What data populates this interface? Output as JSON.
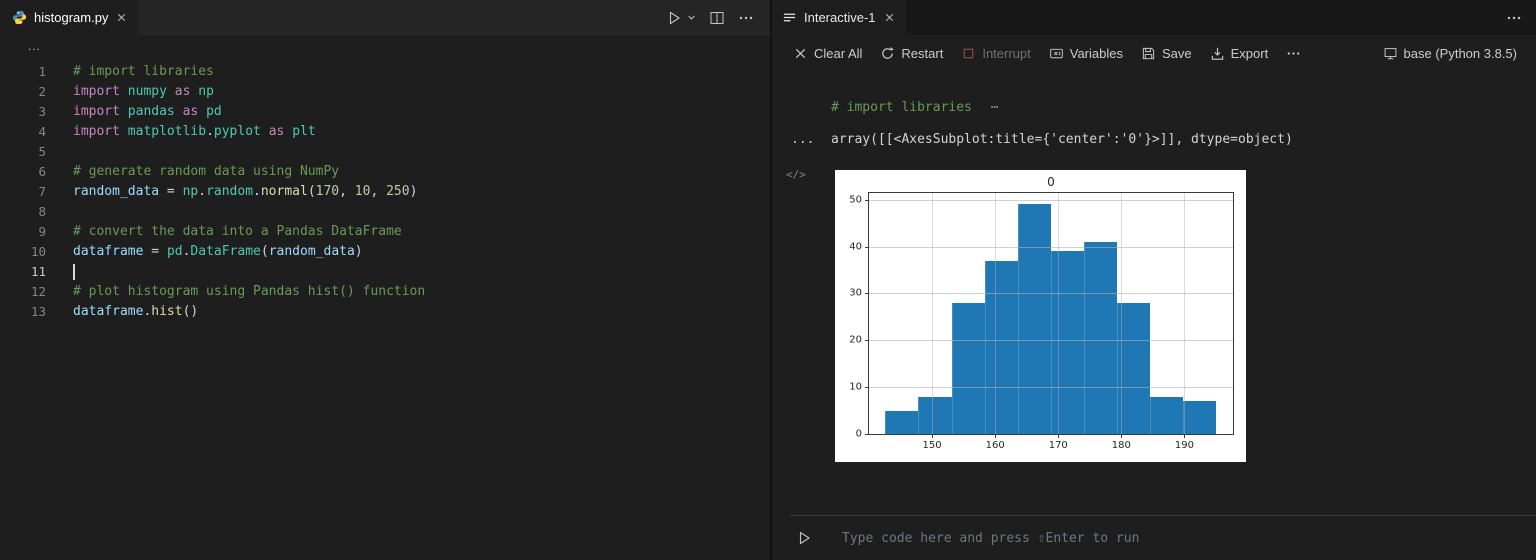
{
  "colors": {
    "editor_bg": "#1e1e1e",
    "tabbar_bg": "#252526",
    "panel_tabbar_bg": "#181818",
    "comment": "#6A9955",
    "keyword": "#C586C0",
    "module": "#4EC9B0",
    "function": "#DCDCAA",
    "number": "#B5CEA8",
    "variable": "#9CDCFE",
    "bar_color": "#1f77b4"
  },
  "editor": {
    "tab": {
      "label": "histogram.py"
    },
    "breadcrumb": "...",
    "lines": [
      {
        "n": "1",
        "tokens": [
          [
            "comment",
            "# import libraries"
          ]
        ]
      },
      {
        "n": "2",
        "tokens": [
          [
            "keyword",
            "import "
          ],
          [
            "module",
            "numpy"
          ],
          [
            "keyword",
            " as "
          ],
          [
            "module",
            "np"
          ]
        ]
      },
      {
        "n": "3",
        "tokens": [
          [
            "keyword",
            "import "
          ],
          [
            "module",
            "pandas"
          ],
          [
            "keyword",
            " as "
          ],
          [
            "module",
            "pd"
          ]
        ]
      },
      {
        "n": "4",
        "tokens": [
          [
            "keyword",
            "import "
          ],
          [
            "module",
            "matplotlib"
          ],
          [
            "plain",
            "."
          ],
          [
            "module",
            "pyplot"
          ],
          [
            "keyword",
            " as "
          ],
          [
            "module",
            "plt"
          ]
        ]
      },
      {
        "n": "5",
        "tokens": []
      },
      {
        "n": "6",
        "tokens": [
          [
            "comment",
            "# generate random data using NumPy"
          ]
        ]
      },
      {
        "n": "7",
        "tokens": [
          [
            "variable",
            "random_data"
          ],
          [
            "plain",
            " = "
          ],
          [
            "module",
            "np"
          ],
          [
            "plain",
            "."
          ],
          [
            "module",
            "random"
          ],
          [
            "plain",
            "."
          ],
          [
            "function",
            "normal"
          ],
          [
            "plain",
            "("
          ],
          [
            "number",
            "170"
          ],
          [
            "plain",
            ", "
          ],
          [
            "number",
            "10"
          ],
          [
            "plain",
            ", "
          ],
          [
            "number",
            "250"
          ],
          [
            "plain",
            ")"
          ]
        ]
      },
      {
        "n": "8",
        "tokens": []
      },
      {
        "n": "9",
        "tokens": [
          [
            "comment",
            "# convert the data into a Pandas DataFrame"
          ]
        ]
      },
      {
        "n": "10",
        "tokens": [
          [
            "variable",
            "dataframe"
          ],
          [
            "plain",
            " = "
          ],
          [
            "module",
            "pd"
          ],
          [
            "plain",
            "."
          ],
          [
            "module",
            "DataFrame"
          ],
          [
            "plain",
            "("
          ],
          [
            "variable",
            "random_data"
          ],
          [
            "plain",
            ")"
          ]
        ]
      },
      {
        "n": "11",
        "tokens": [],
        "cursor": true,
        "active": true
      },
      {
        "n": "12",
        "tokens": [
          [
            "comment",
            "# plot histogram using Pandas hist() function"
          ]
        ]
      },
      {
        "n": "13",
        "tokens": [
          [
            "variable",
            "dataframe"
          ],
          [
            "plain",
            "."
          ],
          [
            "function",
            "hist"
          ],
          [
            "plain",
            "()"
          ]
        ]
      }
    ]
  },
  "interactive": {
    "tab": {
      "label": "Interactive-1"
    },
    "toolbar": [
      {
        "name": "clear-all",
        "icon": "clear",
        "label": "Clear All"
      },
      {
        "name": "restart",
        "icon": "restart",
        "label": "Restart"
      },
      {
        "name": "interrupt",
        "icon": "interrupt",
        "label": "Interrupt",
        "disabled": true
      },
      {
        "name": "variables",
        "icon": "variables",
        "label": "Variables"
      },
      {
        "name": "save",
        "icon": "save",
        "label": "Save"
      },
      {
        "name": "export",
        "icon": "export",
        "label": "Export"
      },
      {
        "name": "more",
        "icon": "more",
        "label": ""
      },
      {
        "name": "kernel",
        "icon": "kernel",
        "label": "base (Python 3.8.5)",
        "right": true
      }
    ],
    "cell_collapsed": {
      "text": "# import libraries",
      "ellipsis": "⋯"
    },
    "output_gutter": "...",
    "output_text": "array([[<AxesSubplot:title={'center':'0'}>]], dtype=object)",
    "presentation_icon": "</>",
    "input": {
      "placeholder": "Type code here and press ⇧Enter to run"
    }
  },
  "chart_data": {
    "type": "bar",
    "title": "0",
    "xlabel": "",
    "ylabel": "",
    "bar_color": "#1f77b4",
    "grid": true,
    "x_ticks": [
      150,
      160,
      170,
      180,
      190
    ],
    "y_ticks": [
      0,
      10,
      20,
      30,
      40,
      50
    ],
    "xlim": [
      140.0,
      197.7
    ],
    "ylim": [
      0,
      51.45
    ],
    "bin_start": 142.6,
    "bin_width": 5.24,
    "values": [
      5,
      8,
      28,
      37,
      49,
      39,
      41,
      28,
      8,
      7
    ]
  }
}
